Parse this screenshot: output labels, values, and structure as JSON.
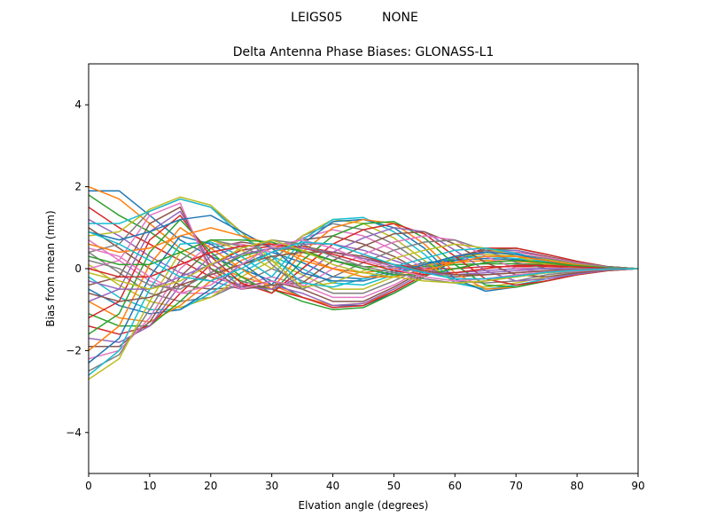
{
  "figure": {
    "suptitle": "LEIGS05          NONE"
  },
  "chart_data": {
    "type": "line",
    "title": "Delta Antenna Phase Biases: GLONASS-L1",
    "xlabel": "Elvation angle (degrees)",
    "ylabel": "Bias from mean (mm)",
    "xlim": [
      0,
      90
    ],
    "ylim": [
      -5,
      5
    ],
    "xticks": [
      0,
      10,
      20,
      30,
      40,
      50,
      60,
      70,
      80,
      90
    ],
    "xtick_labels": [
      "0",
      "10",
      "20",
      "30",
      "40",
      "50",
      "60",
      "70",
      "80",
      "90"
    ],
    "yticks": [
      -4,
      -2,
      0,
      2,
      4
    ],
    "ytick_labels": [
      "−4",
      "−2",
      "0",
      "2",
      "4"
    ],
    "grid": false,
    "legend": "none",
    "x": [
      0,
      5,
      10,
      15,
      20,
      25,
      30,
      35,
      40,
      45,
      50,
      55,
      60,
      65,
      70,
      75,
      80,
      85,
      90
    ],
    "colors": [
      "#1f77b4",
      "#ff7f0e",
      "#2ca02c",
      "#d62728",
      "#9467bd",
      "#8c564b",
      "#e377c2",
      "#7f7f7f",
      "#bcbd22",
      "#17becf"
    ],
    "series": [
      {
        "values": [
          1.9,
          1.9,
          1.3,
          0.7,
          0.3,
          0.0,
          -0.3,
          -0.7,
          -0.9,
          -0.9,
          -0.6,
          -0.2,
          0.2,
          0.4,
          0.4,
          0.3,
          0.15,
          0.05,
          0.0
        ]
      },
      {
        "values": [
          2.0,
          1.7,
          1.1,
          0.5,
          0.1,
          -0.2,
          -0.4,
          -0.7,
          -0.9,
          -0.85,
          -0.55,
          -0.15,
          0.25,
          0.45,
          0.45,
          0.3,
          0.15,
          0.05,
          0.0
        ]
      },
      {
        "values": [
          1.8,
          1.3,
          0.9,
          0.4,
          0.0,
          -0.3,
          -0.5,
          -0.8,
          -1.0,
          -0.95,
          -0.6,
          -0.2,
          0.2,
          0.45,
          0.5,
          0.35,
          0.18,
          0.05,
          0.0
        ]
      },
      {
        "values": [
          1.5,
          1.0,
          0.6,
          0.2,
          -0.2,
          -0.4,
          -0.5,
          -0.7,
          -0.95,
          -0.9,
          -0.55,
          -0.15,
          0.25,
          0.5,
          0.5,
          0.35,
          0.18,
          0.05,
          0.0
        ]
      },
      {
        "values": [
          1.2,
          0.8,
          0.3,
          -0.1,
          -0.3,
          -0.5,
          -0.4,
          -0.6,
          -0.9,
          -0.85,
          -0.5,
          -0.1,
          0.3,
          0.45,
          0.45,
          0.3,
          0.15,
          0.05,
          0.0
        ]
      },
      {
        "values": [
          1.0,
          0.5,
          0.0,
          -0.4,
          -0.5,
          -0.45,
          -0.3,
          -0.5,
          -0.8,
          -0.8,
          -0.45,
          -0.05,
          0.3,
          0.45,
          0.4,
          0.3,
          0.15,
          0.05,
          0.0
        ]
      },
      {
        "values": [
          0.7,
          0.2,
          -0.3,
          -0.6,
          -0.6,
          -0.4,
          -0.2,
          -0.4,
          -0.7,
          -0.7,
          -0.4,
          0.0,
          0.3,
          0.4,
          0.4,
          0.28,
          0.14,
          0.04,
          0.0
        ]
      },
      {
        "values": [
          0.4,
          -0.1,
          -0.6,
          -0.8,
          -0.7,
          -0.35,
          0.0,
          -0.3,
          -0.6,
          -0.6,
          -0.3,
          0.05,
          0.3,
          0.4,
          0.35,
          0.25,
          0.12,
          0.04,
          0.0
        ]
      },
      {
        "values": [
          0.1,
          -0.4,
          -0.8,
          -0.95,
          -0.7,
          -0.2,
          0.2,
          -0.15,
          -0.5,
          -0.5,
          -0.2,
          0.1,
          0.3,
          0.35,
          0.3,
          0.22,
          0.1,
          0.03,
          0.0
        ]
      },
      {
        "values": [
          -0.2,
          -0.7,
          -1.0,
          -1.0,
          -0.6,
          -0.1,
          0.3,
          0.0,
          -0.35,
          -0.4,
          -0.15,
          0.1,
          0.25,
          0.3,
          0.25,
          0.18,
          0.09,
          0.03,
          0.0
        ]
      },
      {
        "values": [
          -0.5,
          -0.9,
          -1.1,
          -1.0,
          -0.5,
          0.1,
          0.4,
          0.15,
          -0.2,
          -0.25,
          -0.05,
          0.15,
          0.2,
          0.25,
          0.22,
          0.15,
          0.08,
          0.02,
          0.0
        ]
      },
      {
        "values": [
          -0.8,
          -1.2,
          -1.3,
          -0.9,
          -0.3,
          0.2,
          0.5,
          0.3,
          0.0,
          -0.1,
          0.0,
          0.1,
          0.15,
          0.2,
          0.18,
          0.12,
          0.06,
          0.02,
          0.0
        ]
      },
      {
        "values": [
          -1.1,
          -1.4,
          -1.4,
          -0.8,
          -0.1,
          0.3,
          0.5,
          0.45,
          0.2,
          0.05,
          0.05,
          0.05,
          0.1,
          0.12,
          0.12,
          0.1,
          0.05,
          0.02,
          0.0
        ]
      },
      {
        "values": [
          -1.4,
          -1.6,
          -1.4,
          -0.6,
          0.1,
          0.45,
          0.55,
          0.55,
          0.4,
          0.25,
          0.1,
          0.0,
          0.0,
          0.05,
          0.05,
          0.05,
          0.03,
          0.01,
          0.0
        ]
      },
      {
        "values": [
          -1.7,
          -1.8,
          -1.4,
          -0.4,
          0.3,
          0.55,
          0.6,
          0.6,
          0.6,
          0.45,
          0.2,
          -0.05,
          -0.1,
          -0.05,
          0.0,
          0.0,
          0.0,
          0.0,
          0.0
        ]
      },
      {
        "values": [
          -1.9,
          -1.9,
          -1.3,
          -0.2,
          0.5,
          0.65,
          0.55,
          0.7,
          0.8,
          0.6,
          0.3,
          -0.1,
          -0.2,
          -0.15,
          -0.1,
          -0.05,
          -0.02,
          0.0,
          0.0
        ]
      },
      {
        "values": [
          -2.2,
          -2.0,
          -1.2,
          0.0,
          0.6,
          0.6,
          0.4,
          0.75,
          0.95,
          0.8,
          0.45,
          0.0,
          -0.25,
          -0.25,
          -0.2,
          -0.1,
          -0.05,
          -0.01,
          0.0
        ]
      },
      {
        "values": [
          -2.5,
          -2.1,
          -1.0,
          0.2,
          0.7,
          0.55,
          0.2,
          0.8,
          1.1,
          0.95,
          0.6,
          0.1,
          -0.3,
          -0.35,
          -0.3,
          -0.15,
          -0.07,
          -0.02,
          0.0
        ]
      },
      {
        "values": [
          -2.7,
          -2.2,
          -0.8,
          0.4,
          0.7,
          0.45,
          0.0,
          0.8,
          1.2,
          1.1,
          0.75,
          0.2,
          -0.35,
          -0.45,
          -0.35,
          -0.2,
          -0.1,
          -0.03,
          0.0
        ]
      },
      {
        "values": [
          -2.6,
          -2.0,
          -0.5,
          0.6,
          0.65,
          0.3,
          -0.2,
          0.7,
          1.2,
          1.25,
          0.9,
          0.35,
          -0.35,
          -0.5,
          -0.4,
          -0.25,
          -0.12,
          -0.04,
          0.0
        ]
      },
      {
        "values": [
          -2.3,
          -1.7,
          -0.2,
          0.8,
          0.6,
          0.15,
          -0.4,
          0.6,
          1.15,
          1.2,
          1.0,
          0.5,
          -0.25,
          -0.55,
          -0.45,
          -0.3,
          -0.14,
          -0.04,
          0.0
        ]
      },
      {
        "values": [
          -2.0,
          -1.4,
          0.1,
          1.0,
          0.5,
          0.0,
          -0.5,
          0.4,
          1.0,
          1.2,
          1.1,
          0.6,
          -0.1,
          -0.5,
          -0.45,
          -0.3,
          -0.15,
          -0.05,
          0.0
        ]
      },
      {
        "values": [
          -1.6,
          -1.1,
          0.4,
          1.2,
          0.4,
          -0.2,
          -0.6,
          0.2,
          0.8,
          1.1,
          1.15,
          0.75,
          0.1,
          -0.4,
          -0.45,
          -0.3,
          -0.15,
          -0.05,
          0.0
        ]
      },
      {
        "values": [
          -1.2,
          -0.8,
          0.7,
          1.3,
          0.3,
          -0.35,
          -0.6,
          0.0,
          0.6,
          0.95,
          1.1,
          0.85,
          0.3,
          -0.25,
          -0.4,
          -0.3,
          -0.15,
          -0.05,
          0.0
        ]
      },
      {
        "values": [
          -0.8,
          -0.5,
          0.9,
          1.4,
          0.15,
          -0.45,
          -0.5,
          -0.2,
          0.4,
          0.75,
          1.0,
          0.9,
          0.45,
          -0.05,
          -0.3,
          -0.25,
          -0.13,
          -0.04,
          0.0
        ]
      },
      {
        "values": [
          -0.4,
          -0.2,
          1.1,
          1.5,
          0.0,
          -0.5,
          -0.4,
          -0.35,
          0.2,
          0.55,
          0.85,
          0.9,
          0.6,
          0.15,
          -0.15,
          -0.2,
          -0.1,
          -0.03,
          0.0
        ]
      },
      {
        "values": [
          0.0,
          0.2,
          1.3,
          1.6,
          -0.1,
          -0.5,
          -0.3,
          -0.45,
          0.0,
          0.35,
          0.65,
          0.8,
          0.7,
          0.3,
          0.0,
          -0.1,
          -0.06,
          -0.02,
          0.0
        ]
      },
      {
        "values": [
          0.4,
          0.6,
          1.4,
          1.7,
          1.5,
          0.9,
          0.1,
          -0.5,
          -0.2,
          0.15,
          0.45,
          0.65,
          0.7,
          0.45,
          0.15,
          0.0,
          -0.02,
          -0.01,
          0.0
        ]
      },
      {
        "values": [
          0.8,
          0.9,
          1.45,
          1.75,
          1.55,
          0.9,
          0.2,
          -0.45,
          -0.35,
          -0.05,
          0.25,
          0.45,
          0.6,
          0.5,
          0.3,
          0.1,
          0.02,
          0.0,
          0.0
        ]
      },
      {
        "values": [
          1.1,
          1.1,
          1.4,
          1.7,
          1.5,
          0.8,
          0.3,
          -0.35,
          -0.45,
          -0.25,
          0.05,
          0.25,
          0.45,
          0.5,
          0.38,
          0.18,
          0.06,
          0.01,
          0.0
        ]
      },
      {
        "values": [
          0.9,
          0.7,
          0.9,
          1.2,
          1.3,
          0.9,
          0.5,
          -0.1,
          -0.3,
          -0.3,
          -0.1,
          0.1,
          0.3,
          0.4,
          0.35,
          0.2,
          0.08,
          0.02,
          0.0
        ]
      },
      {
        "values": [
          0.6,
          0.4,
          0.5,
          0.8,
          1.0,
          0.8,
          0.6,
          0.2,
          0.0,
          -0.2,
          -0.2,
          -0.05,
          0.15,
          0.3,
          0.3,
          0.2,
          0.09,
          0.02,
          0.0
        ]
      },
      {
        "values": [
          0.3,
          0.1,
          0.1,
          0.4,
          0.7,
          0.7,
          0.65,
          0.4,
          0.2,
          0.0,
          -0.15,
          -0.15,
          0.0,
          0.15,
          0.2,
          0.15,
          0.07,
          0.02,
          0.0
        ]
      },
      {
        "values": [
          0.0,
          -0.2,
          -0.2,
          0.1,
          0.4,
          0.55,
          0.6,
          0.5,
          0.35,
          0.15,
          -0.05,
          -0.15,
          -0.1,
          0.0,
          0.08,
          0.08,
          0.04,
          0.01,
          0.0
        ]
      },
      {
        "values": [
          -0.3,
          -0.5,
          -0.5,
          -0.2,
          0.1,
          0.35,
          0.5,
          0.5,
          0.4,
          0.25,
          0.05,
          -0.1,
          -0.15,
          -0.1,
          -0.05,
          0.0,
          0.0,
          0.0,
          0.0
        ]
      },
      {
        "values": [
          -0.6,
          -0.8,
          -0.7,
          -0.4,
          -0.15,
          0.1,
          0.3,
          0.4,
          0.4,
          0.3,
          0.1,
          -0.05,
          -0.15,
          -0.15,
          -0.1,
          -0.05,
          -0.02,
          0.0,
          0.0
        ]
      },
      {
        "values": [
          0.5,
          0.3,
          -0.2,
          -0.6,
          -0.4,
          0.1,
          0.55,
          0.7,
          0.5,
          0.2,
          0.0,
          -0.2,
          -0.3,
          -0.25,
          -0.15,
          -0.08,
          -0.03,
          -0.01,
          0.0
        ]
      },
      {
        "values": [
          0.2,
          0.0,
          -0.4,
          -0.5,
          -0.1,
          0.35,
          0.7,
          0.6,
          0.3,
          0.05,
          -0.1,
          -0.25,
          -0.35,
          -0.3,
          -0.2,
          -0.1,
          -0.04,
          -0.01,
          0.0
        ]
      },
      {
        "values": [
          -0.1,
          -0.3,
          -0.5,
          -0.3,
          0.1,
          0.5,
          0.7,
          0.45,
          0.1,
          -0.1,
          -0.2,
          -0.3,
          -0.35,
          -0.3,
          -0.2,
          -0.1,
          -0.04,
          -0.01,
          0.0
        ]
      },
      {
        "values": [
          0.9,
          0.6,
          0.2,
          -0.2,
          -0.3,
          0.0,
          0.4,
          0.65,
          0.6,
          0.35,
          0.1,
          -0.1,
          -0.25,
          -0.25,
          -0.18,
          -0.09,
          -0.04,
          -0.01,
          0.0
        ]
      }
    ]
  }
}
